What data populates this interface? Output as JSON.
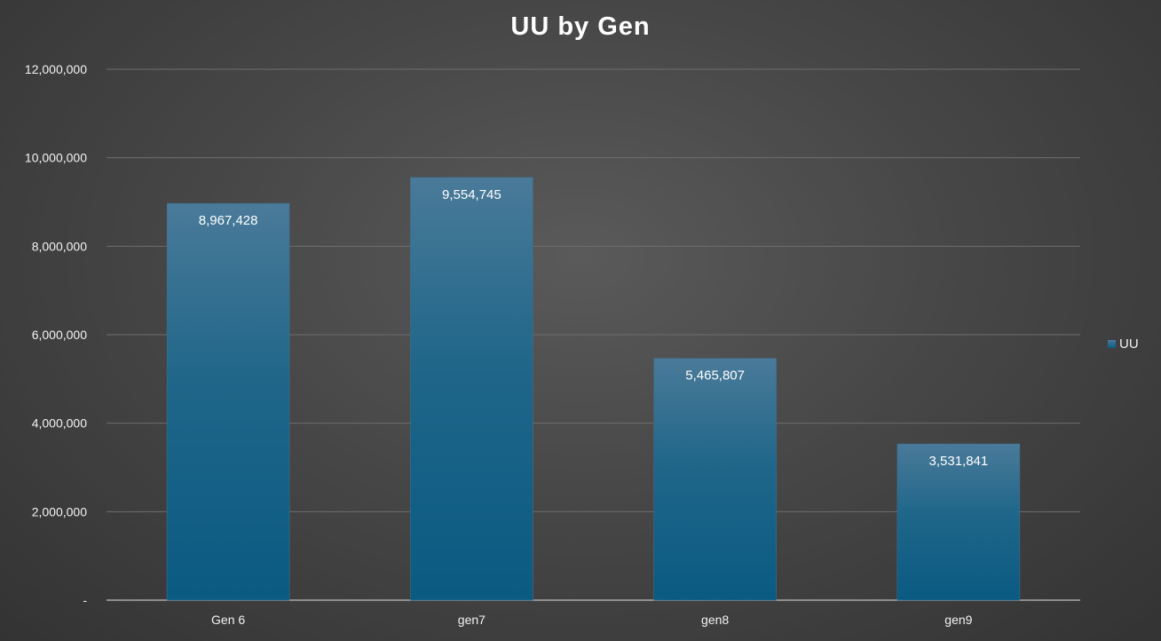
{
  "chart_data": {
    "type": "bar",
    "title": "UU by Gen",
    "categories": [
      "Gen 6",
      "gen7",
      "gen8",
      "gen9"
    ],
    "series": [
      {
        "name": "UU",
        "values": [
          8967428,
          9554745,
          5465807,
          3531841
        ],
        "data_labels": [
          "8,967,428",
          "9,554,745",
          "5,465,807",
          "3,531,841"
        ]
      }
    ],
    "xlabel": "",
    "ylabel": "",
    "ylim": [
      0,
      12000000
    ],
    "y_ticks": [
      0,
      2000000,
      4000000,
      6000000,
      8000000,
      10000000,
      12000000
    ],
    "y_tick_labels": [
      "-",
      "2,000,000",
      "4,000,000",
      "6,000,000",
      "8,000,000",
      "10,000,000",
      "12,000,000"
    ],
    "grid": true,
    "legend_position": "right",
    "colors": {
      "bar_top": "#4a7a99",
      "bar_bottom": "#0a5a82",
      "gridline": "#6e6e6e",
      "axis": "#bfbfbf"
    }
  }
}
